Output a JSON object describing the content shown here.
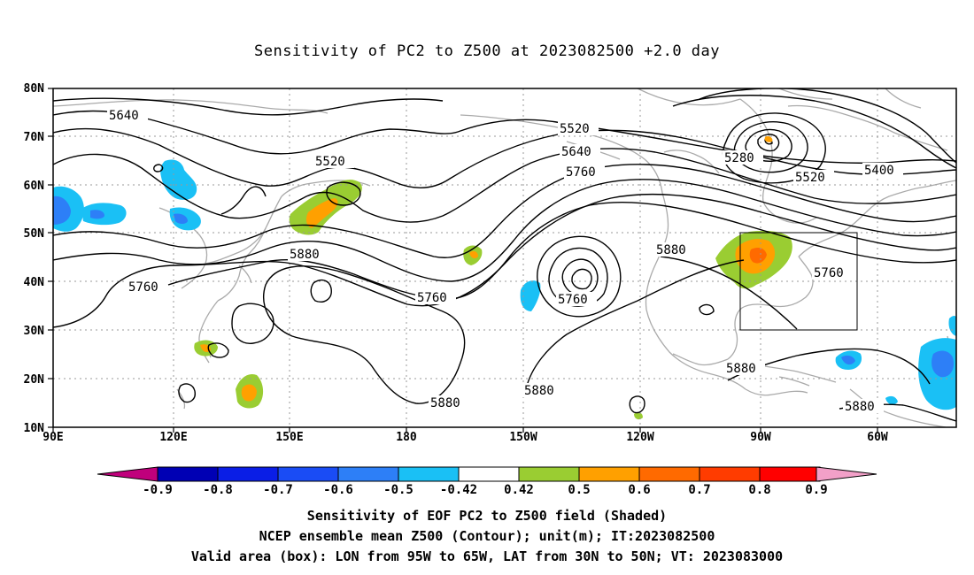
{
  "title": "Sensitivity of PC2 to Z500 at 2023082500 +2.0 day",
  "lat_labels": [
    "80N",
    "70N",
    "60N",
    "50N",
    "40N",
    "30N",
    "20N",
    "10N"
  ],
  "lon_labels": [
    "90E",
    "120E",
    "150E",
    "180",
    "150W",
    "120W",
    "90W",
    "60W"
  ],
  "contour_labels": [
    "5640",
    "5520",
    "5520",
    "5640",
    "5760",
    "5280",
    "5520",
    "5400",
    "5880",
    "5760",
    "5760",
    "5760",
    "5880",
    "5760",
    "5880",
    "5880",
    "5880",
    "5880"
  ],
  "colorbar": {
    "labels": [
      "-0.9",
      "-0.8",
      "-0.7",
      "-0.6",
      "-0.5",
      "-0.42",
      "0.42",
      "0.5",
      "0.6",
      "0.7",
      "0.8",
      "0.9"
    ],
    "colors": [
      "#c0007c",
      "#0000b4",
      "#0a1ee6",
      "#1a4cf5",
      "#2d7ff7",
      "#1ac0f5",
      "#ffffff",
      "#9acd32",
      "#ffa000",
      "#ff6a00",
      "#ff3c00",
      "#ff0000",
      "#f2a0c8"
    ]
  },
  "valid_box": {
    "lon_min": -95,
    "lon_max": -65,
    "lat_min": 30,
    "lat_max": 50
  },
  "footer": {
    "line1": "Sensitivity of EOF PC2 to Z500 field (Shaded)",
    "line2": "NCEP ensemble mean Z500 (Contour); unit(m); IT:2023082500",
    "line3": "Valid area (box): LON from 95W to 65W, LAT from 30N to 50N; VT: 2023083000"
  }
}
